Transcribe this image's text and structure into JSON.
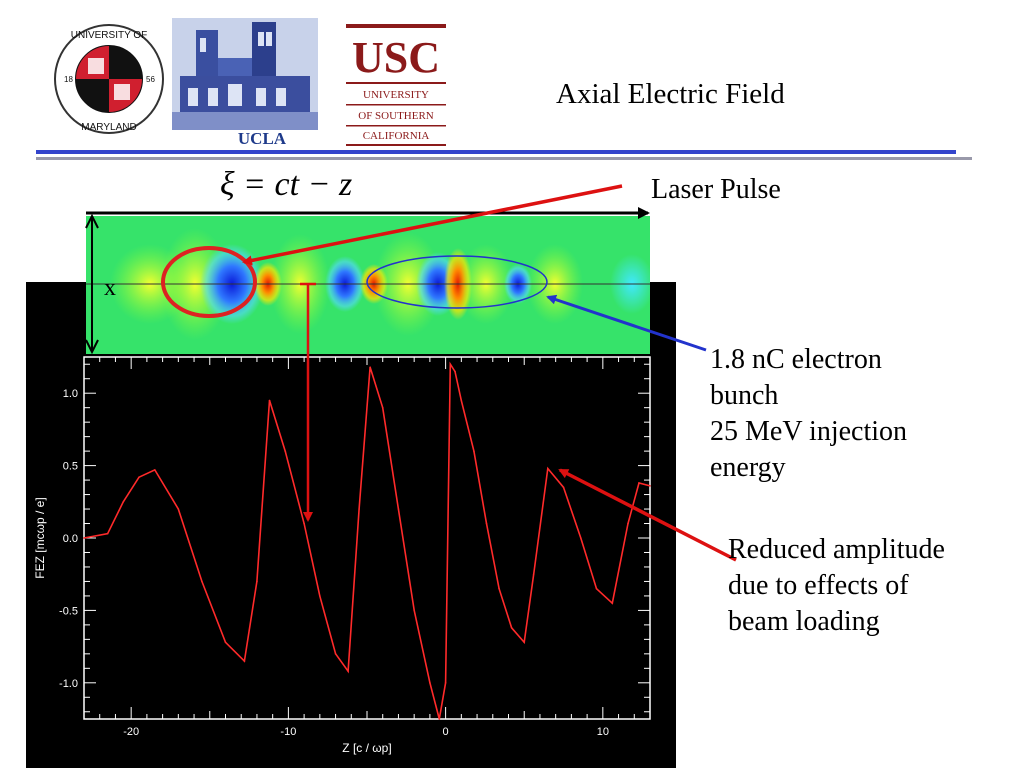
{
  "slide": {
    "title": "Axial Electric Field",
    "formula": "ξ = ct − z",
    "labels": {
      "laser_pulse": "Laser Pulse",
      "bunch_line1": "1.8 nC electron",
      "bunch_line2": "bunch",
      "bunch_line3": "25 MeV injection",
      "bunch_line4": "energy",
      "reduced_line1": "Reduced amplitude",
      "reduced_line2": "due to effects of",
      "reduced_line3": "beam loading"
    },
    "field_map_axis_label": "x"
  },
  "logos": {
    "umd": {
      "top_text": "UNIVERSITY OF",
      "bottom_text": "MARYLAND",
      "left_year": "18",
      "right_year": "56"
    },
    "ucla": {
      "text": "UCLA"
    },
    "usc": {
      "big": "USC",
      "line1": "UNIVERSITY",
      "line2": "OF SOUTHERN",
      "line3": "CALIFORNIA"
    }
  },
  "colors": {
    "rule_blue": "#3344cc",
    "rule_gray": "#9999aa",
    "usc_red": "#8b1a1a",
    "ucla_blue": "#1e3a8a",
    "arrow_red": "#dd1111",
    "arrow_blue": "#2233cc",
    "trace_red": "#ff2a2a"
  },
  "chart_data": {
    "type": "line",
    "xlabel": "Z [c / ωp]",
    "ylabel": "FEZ [mcωp / e]",
    "xlim": [
      -23,
      13
    ],
    "ylim": [
      -1.25,
      1.25
    ],
    "x_ticks": [
      -20,
      -10,
      0,
      10
    ],
    "y_ticks": [
      1.0,
      0.5,
      0.0,
      -0.5,
      -1.0
    ],
    "x_tick_labels": [
      "-20",
      "-10",
      "0",
      "10"
    ],
    "y_tick_labels": [
      "1.0",
      "0.5",
      "0.0",
      "-0.5",
      "-1.0"
    ],
    "series": [
      {
        "x": [
          -23,
          -21.5,
          -20.5,
          -19.5,
          -18.5,
          -17,
          -15.5,
          -14,
          -12.8,
          -12,
          -11.2,
          -10.2,
          -9,
          -8,
          -7,
          -6.2,
          -5.5,
          -4.8,
          -4,
          -3,
          -2,
          -1,
          -0.4,
          0,
          0.3,
          0.6,
          1,
          1.8,
          2.6,
          3.4,
          4.2,
          5,
          5.6,
          6.5,
          7.5,
          8.6,
          9.6,
          10.6,
          11.6,
          12.3,
          13
        ],
        "y": [
          0.0,
          0.03,
          0.25,
          0.42,
          0.47,
          0.2,
          -0.3,
          -0.72,
          -0.85,
          -0.3,
          0.95,
          0.6,
          0.1,
          -0.4,
          -0.8,
          -0.92,
          0.2,
          1.18,
          0.9,
          0.2,
          -0.5,
          -1.0,
          -1.25,
          -1.0,
          1.2,
          1.15,
          0.95,
          0.6,
          0.1,
          -0.35,
          -0.62,
          -0.72,
          -0.25,
          0.48,
          0.35,
          0.0,
          -0.35,
          -0.45,
          0.1,
          0.38,
          0.36
        ]
      }
    ]
  }
}
